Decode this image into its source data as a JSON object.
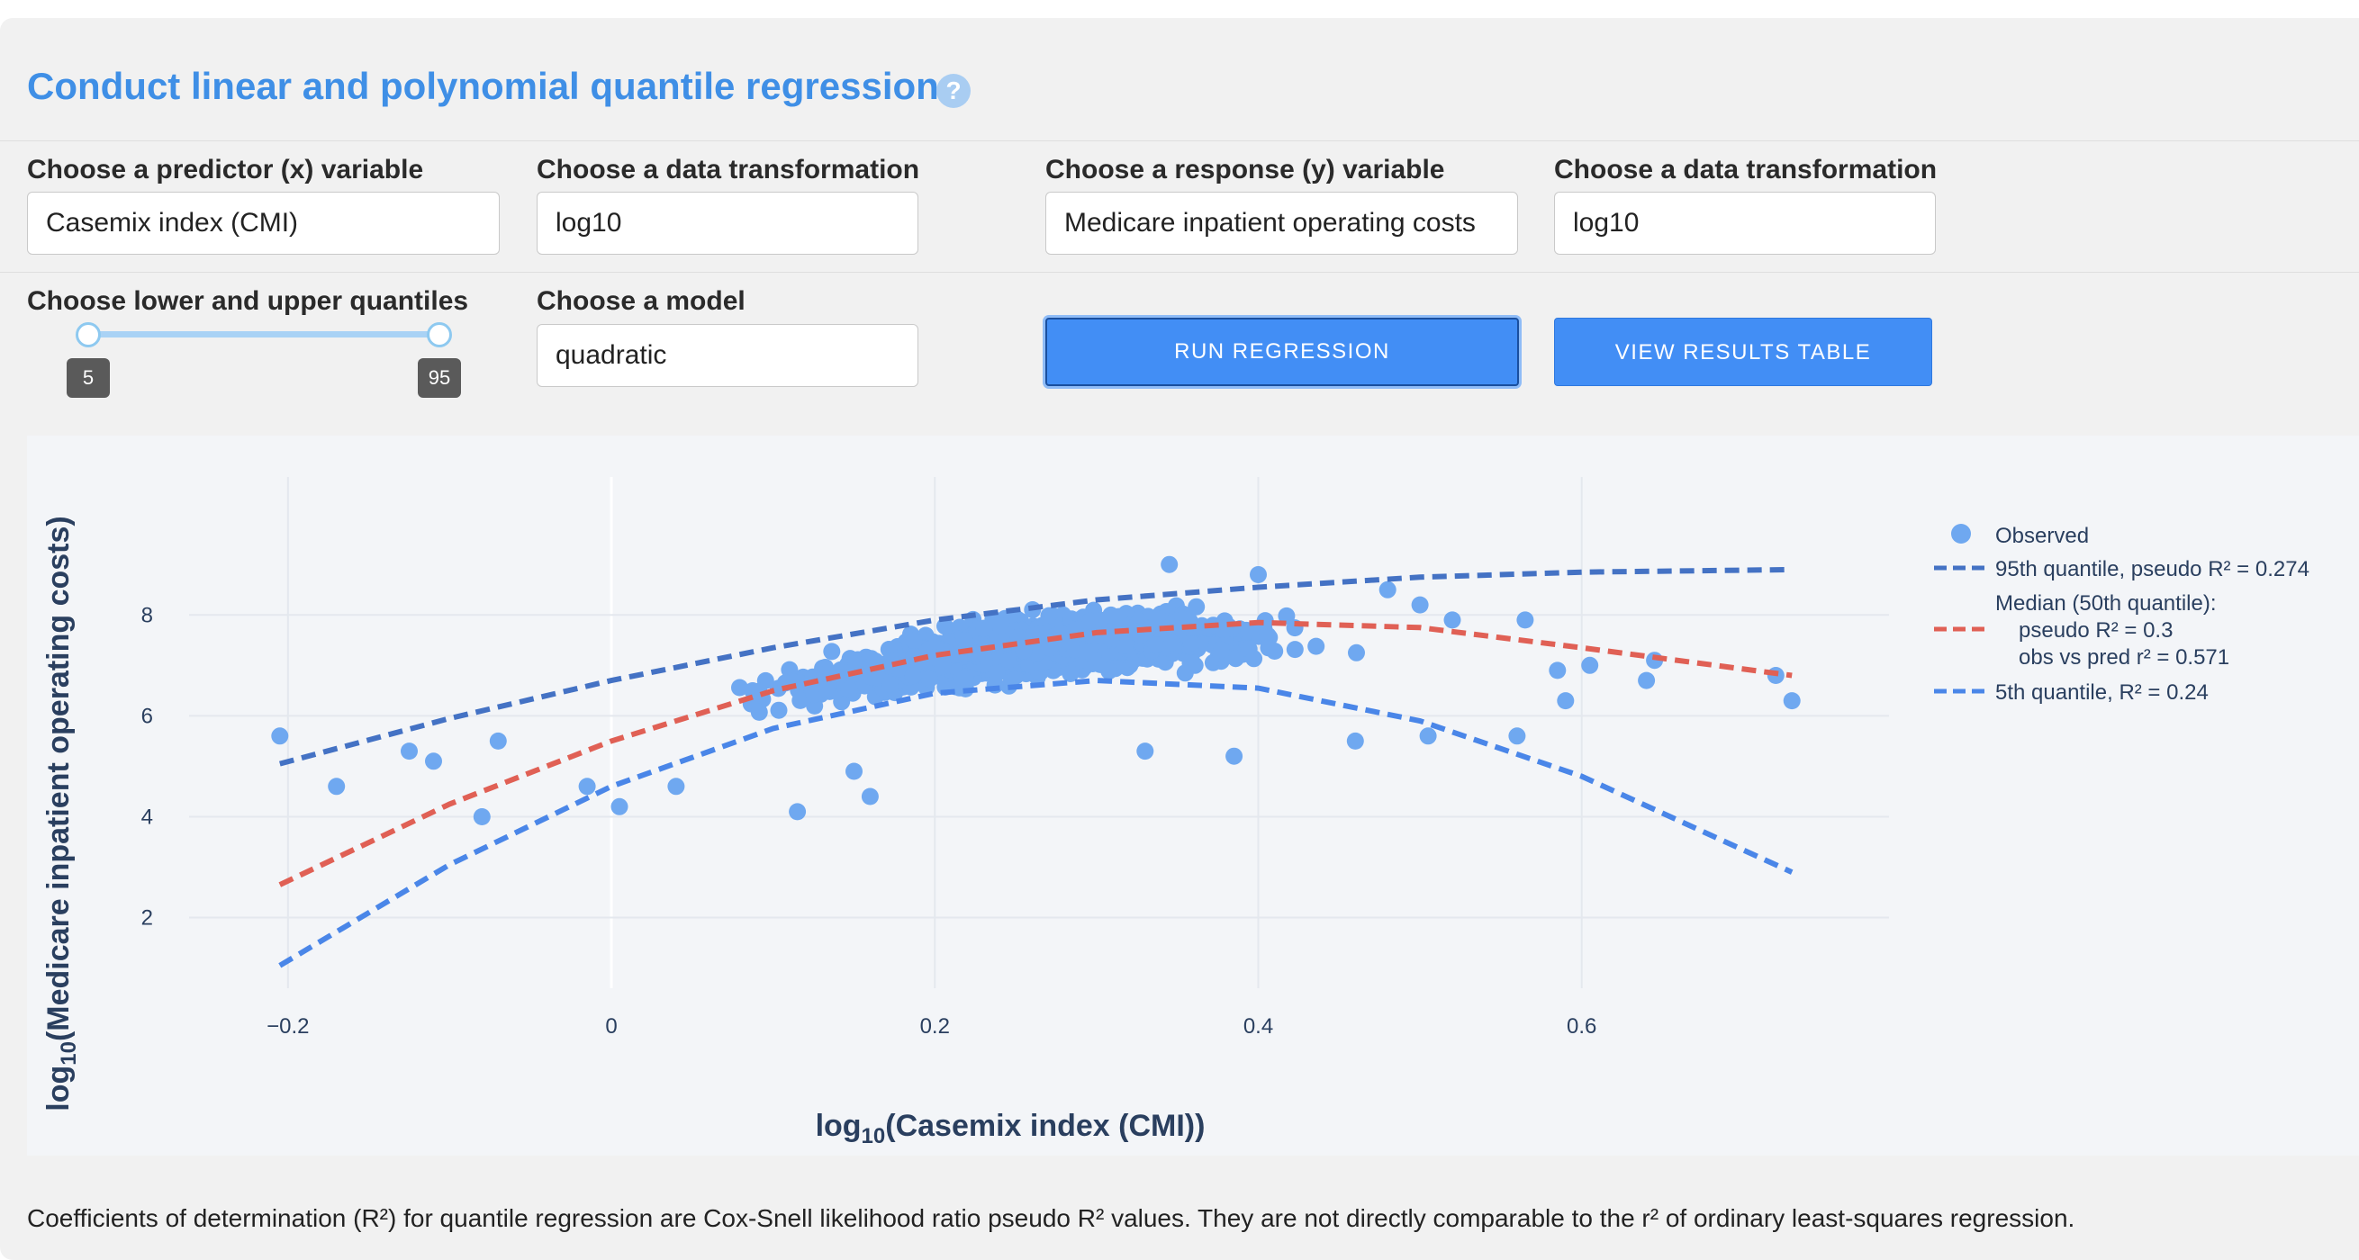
{
  "header": {
    "title": "Conduct linear and polynomial quantile regression",
    "help_glyph": "?"
  },
  "controls": {
    "predictor_label": "Choose a predictor (x) variable",
    "predictor_value": "Casemix index (CMI)",
    "x_transform_label": "Choose a data transformation",
    "x_transform_value": "log10",
    "response_label": "Choose a response (y) variable",
    "response_value": "Medicare inpatient operating costs",
    "y_transform_label": "Choose a data transformation",
    "y_transform_value": "log10",
    "quantiles_label": "Choose lower and upper quantiles",
    "quantile_lower": "5",
    "quantile_upper": "95",
    "model_label": "Choose a model",
    "model_value": "quadratic",
    "run_button": "RUN REGRESSION",
    "results_button": "VIEW RESULTS TABLE"
  },
  "colors": {
    "accent": "#3f8fe6",
    "observed": "#6fa8f0",
    "q95": "#4472c4",
    "median": "#e06055",
    "q05": "#4a86e8"
  },
  "chart_data": {
    "type": "scatter",
    "xlabel": "log10(Casemix index (CMI))",
    "ylabel": "log10(Medicare inpatient operating costs)",
    "xlim": [
      -0.25,
      0.79
    ],
    "ylim": [
      0.6,
      10.2
    ],
    "x_ticks": [
      "−0.2",
      "0",
      "0.2",
      "0.4",
      "0.6"
    ],
    "x_tick_values": [
      -0.2,
      0,
      0.2,
      0.4,
      0.6
    ],
    "y_ticks": [
      "2",
      "4",
      "6",
      "8"
    ],
    "y_tick_values": [
      2,
      4,
      6,
      8
    ],
    "grid": true,
    "legend_position": "right",
    "legend": {
      "observed": "Observed",
      "q95": "95th quantile, pseudo R² = 0.274",
      "median_line1": "Median (50th quantile):",
      "median_line2": "pseudo R² = 0.3",
      "median_line3": "obs vs pred r² = 0.571",
      "q05": "5th quantile, R² = 0.24"
    },
    "series": [
      {
        "name": "95th quantile, pseudo R² = 0.274",
        "style": "dashed",
        "x": [
          -0.205,
          -0.1,
          0,
          0.1,
          0.2,
          0.3,
          0.4,
          0.5,
          0.6,
          0.73
        ],
        "y": [
          5.05,
          5.95,
          6.7,
          7.35,
          7.9,
          8.3,
          8.55,
          8.75,
          8.85,
          8.9
        ]
      },
      {
        "name": "Median (50th quantile)",
        "style": "dashed",
        "x": [
          -0.205,
          -0.1,
          0,
          0.1,
          0.2,
          0.3,
          0.4,
          0.5,
          0.6,
          0.73
        ],
        "y": [
          2.65,
          4.25,
          5.5,
          6.5,
          7.2,
          7.65,
          7.85,
          7.75,
          7.35,
          6.8
        ]
      },
      {
        "name": "5th quantile, R² = 0.24",
        "style": "dashed",
        "x": [
          -0.205,
          -0.1,
          0,
          0.1,
          0.2,
          0.3,
          0.4,
          0.5,
          0.6,
          0.73
        ],
        "y": [
          1.05,
          3.05,
          4.6,
          5.75,
          6.45,
          6.7,
          6.55,
          5.9,
          4.8,
          2.9
        ]
      }
    ],
    "observed_outliers": [
      [
        -0.205,
        5.6
      ],
      [
        -0.17,
        4.6
      ],
      [
        -0.11,
        5.1
      ],
      [
        -0.08,
        4.0
      ],
      [
        -0.07,
        5.5
      ],
      [
        -0.015,
        4.6
      ],
      [
        0.005,
        4.2
      ],
      [
        0.04,
        4.6
      ],
      [
        0.115,
        4.1
      ],
      [
        0.15,
        4.9
      ],
      [
        0.16,
        4.4
      ],
      [
        0.33,
        5.3
      ],
      [
        0.385,
        5.2
      ],
      [
        0.46,
        5.5
      ],
      [
        0.505,
        5.6
      ],
      [
        0.56,
        5.6
      ],
      [
        0.585,
        6.9
      ],
      [
        0.59,
        6.3
      ],
      [
        0.605,
        7.0
      ],
      [
        0.64,
        6.7
      ],
      [
        0.645,
        7.1
      ],
      [
        0.72,
        6.8
      ],
      [
        0.73,
        6.3
      ],
      [
        0.345,
        9.0
      ],
      [
        0.4,
        8.8
      ],
      [
        0.52,
        7.9
      ],
      [
        0.565,
        7.9
      ],
      [
        0.5,
        8.2
      ],
      [
        0.48,
        8.5
      ],
      [
        -0.125,
        5.3
      ]
    ]
  },
  "footnote": "Coefficients of determination (R²) for quantile regression are Cox-Snell likelihood ratio pseudo R² values. They are not directly comparable to the r² of ordinary least-squares regression."
}
